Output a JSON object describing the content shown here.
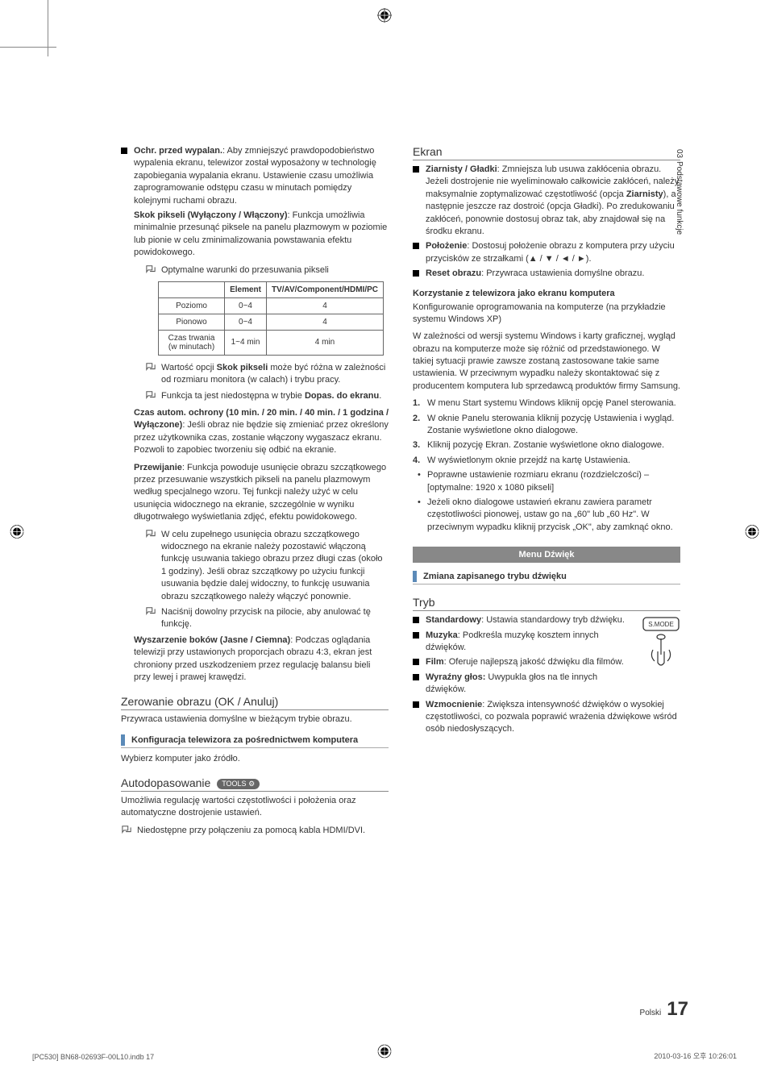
{
  "chapter": {
    "number": "03",
    "title": "Podstawowe funkcje"
  },
  "left_column": {
    "burn_protection": {
      "title": "Ochr. przed wypalan.",
      "intro": ": Aby zmniejszyć prawdopodobieństwo wypalenia ekranu, telewizor został wyposażony w technologię zapobiegania wypalania ekranu. Ustawienie czasu umożliwia zaprogramowanie odstępu czasu w minutach pomiędzy kolejnymi ruchami obrazu.",
      "pixel_shift": {
        "title": "Skok pikseli (Wyłączony / Włączony)",
        "desc": ": Funkcja umożliwia minimalnie przesunąć piksele na panelu plazmowym w poziomie lub pionie w celu zminimalizowania powstawania efektu powidokowego."
      },
      "note1": "Optymalne warunki do przesuwania pikseli",
      "table": {
        "headers": [
          "",
          "Element",
          "TV/AV/Component/HDMI/PC"
        ],
        "rows": [
          [
            "Poziomo",
            "0~4",
            "4"
          ],
          [
            "Pionowo",
            "0~4",
            "4"
          ],
          [
            "Czas trwania (w minutach)",
            "1~4 min",
            "4 min"
          ]
        ]
      },
      "note2_bold": "Skok pikseli",
      "note2_pre": "Wartość opcji ",
      "note2_post": " może być różna w zależności od rozmiaru monitora (w calach) i trybu pracy.",
      "note3_pre": "Funkcja ta jest niedostępna w trybie ",
      "note3_bold": "Dopas. do ekranu",
      "note3_post": ".",
      "autoprotect": {
        "title": "Czas autom. ochrony (10 min. / 20 min. / 40 min. / 1 godzina / Wyłączone)",
        "desc": ": Jeśli obraz nie będzie się zmieniać przez określony przez użytkownika czas, zostanie włączony wygaszacz ekranu. Pozwoli to zapobiec tworzeniu się odbić na ekranie."
      },
      "scrolling": {
        "title": "Przewijanie",
        "desc": ": Funkcja powoduje usunięcie obrazu szczątkowego przez przesuwanie wszystkich pikseli na panelu plazmowym według specjalnego wzoru. Tej funkcji należy użyć w celu usunięcia widocznego na ekranie, szczególnie w wyniku długotrwałego wyświetlania zdjęć, efektu powidokowego."
      },
      "scrolling_note1": "W celu zupełnego usunięcia obrazu szczątkowego widocznego na ekranie należy pozostawić włączoną funkcję usuwania takiego obrazu przez długi czas (około 1 godziny). Jeśli obraz szczątkowy po użyciu funkcji usuwania będzie dalej widoczny, to funkcję usuwania obrazu szczątkowego należy włączyć ponownie.",
      "scrolling_note2": "Naciśnij dowolny przycisk na pilocie, aby anulować tę funkcję.",
      "sidegray": {
        "title": "Wyszarzenie boków (Jasne / Ciemna)",
        "desc": ": Podczas oglądania telewizji przy ustawionych proporcjach obrazu 4:3, ekran jest chroniony przed uszkodzeniem przez regulację balansu bieli przy lewej i prawej krawędzi."
      }
    },
    "reset_picture": {
      "heading": "Zerowanie obrazu (OK / Anuluj)",
      "desc": "Przywraca ustawienia domyślne w bieżącym trybie obrazu."
    },
    "pc_config": {
      "heading": "Konfiguracja telewizora za pośrednictwem komputera",
      "desc": "Wybierz komputer jako źródło."
    },
    "autoadjust": {
      "heading": "Autodopasowanie",
      "tools": "TOOLS",
      "desc": "Umożliwia regulację wartości częstotliwości i położenia oraz automatyczne dostrojenie ustawień.",
      "note": "Niedostępne przy połączeniu za pomocą kabla HDMI/DVI."
    }
  },
  "right_column": {
    "ekran": {
      "heading": "Ekran",
      "grainy": {
        "title": "Ziarnisty / Gładki",
        "desc_pre": ": Zmniejsza lub usuwa zakłócenia obrazu. Jeżeli dostrojenie nie wyeliminowało całkowicie zakłóceń, należy maksymalnie zoptymalizować częstotliwość (opcja ",
        "bold1": "Ziarnisty",
        "mid": "), a następnie jeszcze raz dostroić (opcja Gładki). Po zredukowaniu zakłóceń, ponownie dostosuj obraz tak, aby znajdował się na środku ekranu."
      },
      "position": {
        "title": "Położenie",
        "desc": ": Dostosuj położenie obrazu z komputera przy użyciu przycisków ze strzałkami (▲ / ▼ / ◄ / ►)."
      },
      "reset": {
        "title": "Reset obrazu",
        "desc": ": Przywraca ustawienia domyślne obrazu."
      },
      "pc_use": {
        "heading": "Korzystanie z telewizora jako ekranu komputera",
        "sub": "Konfigurowanie oprogramowania na komputerze (na przykładzie systemu Windows XP)",
        "desc": "W zależności od wersji systemu Windows i karty graficznej, wygląd obrazu na komputerze może się różnić od przedstawionego. W takiej sytuacji prawie zawsze zostaną zastosowane takie same ustawienia. W przeciwnym wypadku należy skontaktować się z producentem komputera lub sprzedawcą produktów firmy Samsung.",
        "steps": [
          "W menu Start systemu Windows kliknij opcję Panel sterowania.",
          "W oknie Panelu sterowania kliknij pozycję Ustawienia i wygląd. Zostanie wyświetlone okno dialogowe.",
          "Kliknij pozycję Ekran. Zostanie wyświetlone okno dialogowe.",
          "W wyświetlonym oknie przejdź na kartę Ustawienia."
        ],
        "bullets": [
          "Poprawne ustawienie rozmiaru ekranu (rozdzielczości) – [optymalne: 1920 x 1080 pikseli]",
          "Jeżeli okno dialogowe ustawień ekranu zawiera parametr częstotliwości pionowej, ustaw go na „60\" lub „60 Hz\". W przeciwnym wypadku kliknij przycisk „OK\", aby zamknąć okno."
        ]
      }
    },
    "sound_menu": {
      "banner": "Menu Dźwięk"
    },
    "sound_mode_change": {
      "heading": "Zmiana zapisanego trybu dźwięku"
    },
    "tryb": {
      "heading": "Tryb",
      "remote_label": "S.MODE",
      "items": [
        {
          "title": "Standardowy",
          "desc": ": Ustawia standardowy tryb dźwięku."
        },
        {
          "title": "Muzyka",
          "desc": ": Podkreśla muzykę kosztem innych dźwięków."
        },
        {
          "title": "Film",
          "desc": ": Oferuje najlepszą jakość dźwięku dla filmów."
        },
        {
          "title": "Wyraźny głos:",
          "desc": " Uwypukla głos na tle innych dźwięków."
        },
        {
          "title": "Wzmocnienie",
          "desc": ": Zwiększa intensywność dźwięków o wysokiej częstotliwości, co pozwala poprawić wrażenia dźwiękowe wśród osób niedosłyszących."
        }
      ]
    }
  },
  "footer": {
    "page_label": "Polski",
    "page_number": "17",
    "doc_ref": "[PC530] BN68-02693F-00L10.indb   17",
    "timestamp": "2010-03-16   오후 10:26:01"
  },
  "styling": {
    "accent_color": "#5b8ab8",
    "banner_bg": "#888888",
    "text_color": "#333333",
    "border_color": "#666666"
  }
}
